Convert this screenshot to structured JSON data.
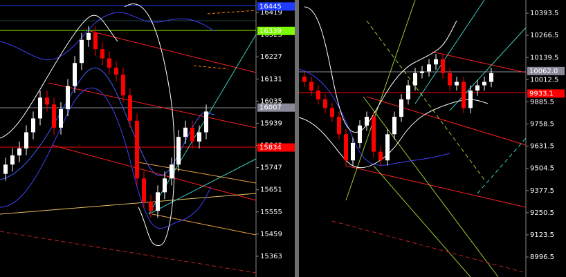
{
  "chart_data": [
    {
      "type": "candlestick",
      "ylim": [
        15273,
        16473
      ],
      "yticks": [
        16419,
        16323,
        16227,
        16131,
        16035,
        15939,
        15843,
        15747,
        15651,
        15555,
        15459,
        15363
      ],
      "price_labels": [
        {
          "value": 16445,
          "color": "#1e3cff"
        },
        {
          "value": 16339,
          "color": "#7cfc00"
        },
        {
          "value": 16007,
          "color": "#8a8a9a"
        },
        {
          "value": 15834,
          "color": "#ff0000"
        }
      ],
      "up_color": "#ffffff",
      "down_color": "#ff0000",
      "open": [
        15720,
        15760,
        15800,
        15830,
        15900,
        15960,
        16050,
        16020,
        15920,
        16000,
        16100,
        16200,
        16300,
        16330,
        16260,
        16220,
        16180,
        16150,
        16060,
        15950,
        15700,
        15600,
        15560,
        15640,
        15700,
        15760,
        15880,
        15920,
        15860,
        15900
      ],
      "high": [
        15790,
        15830,
        15860,
        15930,
        15990,
        16080,
        16080,
        16050,
        16030,
        16130,
        16230,
        16330,
        16360,
        16360,
        16290,
        16250,
        16210,
        16180,
        16090,
        15980,
        15730,
        15630,
        15670,
        15730,
        15790,
        15910,
        15950,
        15950,
        15930,
        16020
      ],
      "low": [
        15690,
        15730,
        15770,
        15800,
        15870,
        15930,
        15990,
        15890,
        15890,
        15970,
        16070,
        16170,
        16270,
        16230,
        16190,
        16150,
        16120,
        16030,
        15920,
        15670,
        15570,
        15530,
        15530,
        15610,
        15670,
        15730,
        15850,
        15830,
        15830,
        15870
      ],
      "close": [
        15760,
        15800,
        15830,
        15900,
        15960,
        16050,
        16020,
        15920,
        16000,
        16100,
        16200,
        16300,
        16330,
        16260,
        16220,
        16180,
        16150,
        16060,
        15950,
        15700,
        15600,
        15560,
        15640,
        15700,
        15760,
        15880,
        15920,
        15860,
        15900,
        15990
      ]
    },
    {
      "type": "candlestick",
      "ylim": [
        8882,
        10469
      ],
      "yticks": [
        10393.5,
        10266.5,
        10139.5,
        10012.5,
        9885.5,
        9758.5,
        9631.5,
        9504.5,
        9377.5,
        9250.5,
        9123.5,
        8996.5
      ],
      "price_labels": [
        {
          "value": 10062,
          "label": "10062.0",
          "color": "#8a8a9a"
        },
        {
          "value": 9933.1,
          "color": "#ff0000"
        }
      ],
      "up_color": "#ffffff",
      "down_color": "#ff0000",
      "open": [
        10030,
        10000,
        9950,
        9900,
        9850,
        9800,
        9700,
        9550,
        9650,
        9750,
        9800,
        9600,
        9550,
        9700,
        9800,
        9900,
        9980,
        10050,
        10060,
        10100,
        10130,
        10050,
        9980,
        10000,
        9850,
        9950,
        9980,
        10000
      ],
      "high": [
        10060,
        10030,
        9980,
        9930,
        9880,
        9830,
        9730,
        9680,
        9780,
        9830,
        9830,
        9630,
        9730,
        9830,
        9930,
        10010,
        10080,
        10090,
        10130,
        10160,
        10160,
        10080,
        10030,
        10030,
        9980,
        10010,
        10030,
        10080
      ],
      "low": [
        9970,
        9920,
        9870,
        9820,
        9770,
        9670,
        9520,
        9520,
        9620,
        9720,
        9570,
        9520,
        9520,
        9670,
        9770,
        9870,
        9950,
        10020,
        10030,
        10070,
        10020,
        9950,
        9950,
        9820,
        9820,
        9920,
        9950,
        9970
      ],
      "close": [
        10000,
        9950,
        9900,
        9850,
        9800,
        9700,
        9550,
        9650,
        9750,
        9800,
        9600,
        9550,
        9700,
        9800,
        9900,
        9980,
        10050,
        10060,
        10100,
        10130,
        10050,
        9980,
        10000,
        9850,
        9950,
        9980,
        10000,
        10050
      ]
    }
  ]
}
